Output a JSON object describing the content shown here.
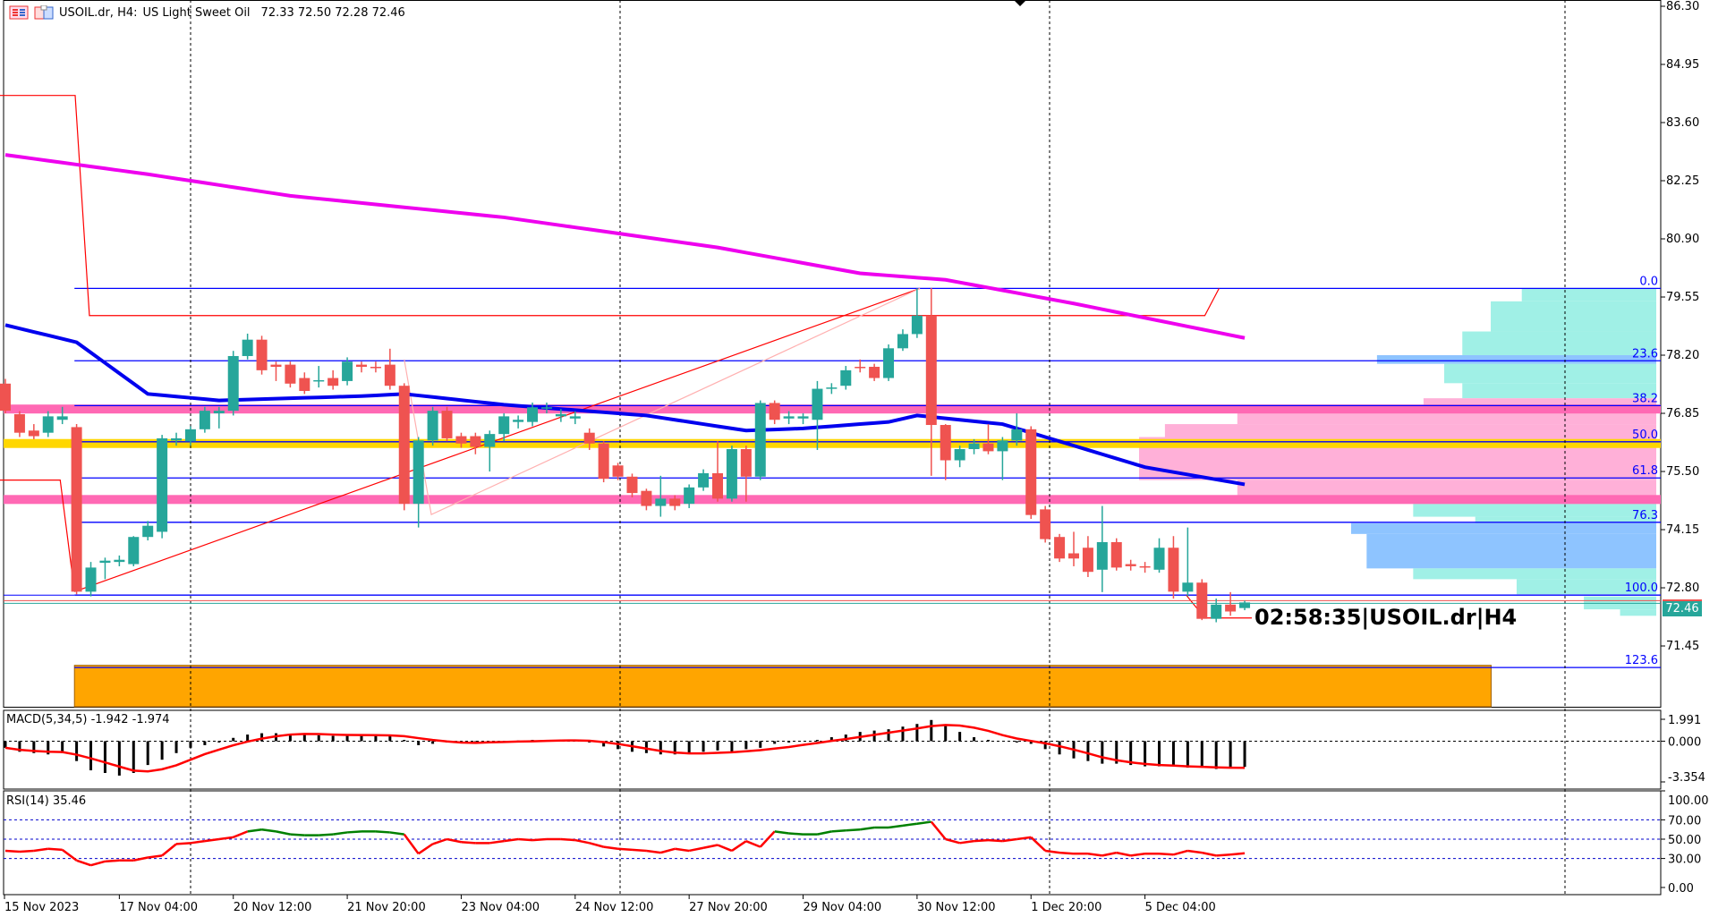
{
  "header": {
    "symbol": "USOIL.dr, H4:",
    "description": "US Light Sweet Oil",
    "ohlc": "72.33 72.50 72.28 72.46",
    "menu_icon": "list-icon",
    "chart_icon": "chart-window-icon"
  },
  "timer_label": "02:58:35|USOIL.dr|H4",
  "current_price": "72.46",
  "colors": {
    "bull": "#26a69a",
    "bear": "#ef5350",
    "ma_slow": "#ee00ee",
    "ma_fast": "#0000ee",
    "fib": "#0000ff",
    "zone_orange": "#ffa500",
    "band_pink": "#ff69b4",
    "band_yellow": "#ffd700",
    "vp_cyan": "#a0f0e6",
    "vp_pink": "#ffb0d8",
    "vp_blue": "#8ec4ff",
    "rsi_up": "#008000",
    "rsi_down": "#ff0000",
    "macd_signal": "#ff0000"
  },
  "price_axis": {
    "ticks": [
      "86.30",
      "84.95",
      "83.60",
      "82.25",
      "80.90",
      "79.55",
      "78.20",
      "76.85",
      "75.50",
      "74.15",
      "72.80",
      "71.45"
    ],
    "range": [
      70.05,
      86.3
    ]
  },
  "time_axis": {
    "labels": [
      "15 Nov 2023",
      "17 Nov 04:00",
      "20 Nov 12:00",
      "21 Nov 20:00",
      "23 Nov 04:00",
      "24 Nov 12:00",
      "27 Nov 20:00",
      "29 Nov 04:00",
      "30 Nov 12:00",
      "1 Dec 20:00",
      "5 Dec 04:00"
    ],
    "bars_per_label": 8
  },
  "chart_data": {
    "type": "candlestick",
    "candles": [
      [
        77.54,
        77.65,
        76.85,
        76.91
      ],
      [
        76.83,
        76.9,
        76.3,
        76.4
      ],
      [
        76.45,
        76.6,
        76.25,
        76.32
      ],
      [
        76.4,
        76.9,
        76.3,
        76.78
      ],
      [
        76.7,
        77.0,
        76.6,
        76.78
      ],
      [
        76.53,
        76.6,
        72.65,
        72.71
      ],
      [
        72.71,
        73.4,
        72.6,
        73.27
      ],
      [
        73.38,
        73.5,
        73.0,
        73.43
      ],
      [
        73.4,
        73.55,
        73.3,
        73.45
      ],
      [
        73.35,
        74.0,
        73.3,
        73.98
      ],
      [
        73.98,
        74.35,
        73.9,
        74.24
      ],
      [
        74.1,
        76.35,
        73.95,
        76.27
      ],
      [
        76.22,
        76.4,
        76.1,
        76.27
      ],
      [
        76.2,
        76.55,
        76.1,
        76.48
      ],
      [
        76.48,
        77.0,
        76.4,
        76.91
      ],
      [
        76.85,
        77.0,
        76.5,
        76.91
      ],
      [
        76.91,
        78.3,
        76.8,
        78.18
      ],
      [
        78.18,
        78.7,
        78.1,
        78.56
      ],
      [
        78.56,
        78.65,
        77.75,
        77.85
      ],
      [
        77.98,
        78.05,
        77.6,
        77.93
      ],
      [
        77.98,
        78.05,
        77.45,
        77.54
      ],
      [
        77.67,
        77.8,
        77.3,
        77.37
      ],
      [
        77.6,
        77.95,
        77.45,
        77.62
      ],
      [
        77.67,
        77.85,
        77.4,
        77.49
      ],
      [
        77.6,
        78.15,
        77.5,
        78.05
      ],
      [
        77.98,
        78.05,
        77.8,
        77.93
      ],
      [
        77.93,
        78.05,
        77.8,
        77.9
      ],
      [
        77.98,
        78.35,
        77.4,
        77.49
      ],
      [
        77.49,
        77.55,
        74.6,
        74.75
      ],
      [
        74.75,
        76.3,
        74.2,
        76.22
      ],
      [
        76.22,
        77.0,
        76.1,
        76.91
      ],
      [
        76.91,
        77.0,
        76.2,
        76.27
      ],
      [
        76.32,
        76.4,
        76.05,
        76.15
      ],
      [
        76.32,
        76.4,
        75.9,
        76.07
      ],
      [
        76.07,
        76.45,
        75.5,
        76.37
      ],
      [
        76.37,
        76.85,
        76.2,
        76.78
      ],
      [
        76.65,
        76.8,
        76.5,
        76.7
      ],
      [
        76.65,
        77.1,
        76.55,
        76.99
      ],
      [
        76.96,
        77.1,
        76.85,
        76.99
      ],
      [
        76.78,
        76.95,
        76.65,
        76.83
      ],
      [
        76.73,
        76.9,
        76.6,
        76.78
      ],
      [
        76.4,
        76.5,
        76.0,
        76.15
      ],
      [
        76.15,
        76.2,
        75.25,
        75.33
      ],
      [
        75.64,
        75.7,
        75.3,
        75.38
      ],
      [
        75.38,
        75.45,
        74.9,
        75.0
      ],
      [
        75.05,
        75.1,
        74.6,
        74.7
      ],
      [
        74.7,
        75.4,
        74.45,
        74.87
      ],
      [
        74.87,
        74.95,
        74.6,
        74.7
      ],
      [
        74.75,
        75.2,
        74.65,
        75.13
      ],
      [
        75.13,
        75.55,
        75.05,
        75.46
      ],
      [
        75.46,
        76.2,
        74.8,
        74.87
      ],
      [
        74.87,
        76.1,
        74.8,
        76.02
      ],
      [
        76.02,
        76.1,
        74.8,
        75.38
      ],
      [
        75.38,
        77.15,
        75.3,
        77.09
      ],
      [
        77.09,
        77.15,
        76.6,
        76.7
      ],
      [
        76.73,
        76.9,
        76.6,
        76.78
      ],
      [
        76.73,
        76.85,
        76.6,
        76.78
      ],
      [
        76.7,
        77.6,
        76.0,
        77.42
      ],
      [
        77.42,
        77.55,
        77.3,
        77.45
      ],
      [
        77.49,
        77.95,
        77.4,
        77.85
      ],
      [
        77.93,
        78.1,
        77.8,
        77.9
      ],
      [
        77.93,
        78.0,
        77.6,
        77.67
      ],
      [
        77.67,
        78.45,
        77.6,
        78.36
      ],
      [
        78.36,
        78.8,
        78.3,
        78.69
      ],
      [
        78.69,
        79.75,
        78.6,
        79.12
      ],
      [
        79.12,
        79.76,
        75.4,
        76.58
      ],
      [
        76.58,
        76.6,
        75.3,
        75.76
      ],
      [
        75.76,
        76.1,
        75.6,
        76.02
      ],
      [
        76.02,
        76.25,
        75.9,
        76.15
      ],
      [
        76.15,
        76.6,
        75.9,
        75.97
      ],
      [
        75.97,
        76.3,
        75.3,
        76.22
      ],
      [
        76.22,
        76.85,
        76.1,
        76.48
      ],
      [
        76.48,
        76.55,
        74.4,
        74.49
      ],
      [
        74.62,
        74.7,
        73.85,
        73.93
      ],
      [
        73.98,
        74.05,
        73.4,
        73.48
      ],
      [
        73.6,
        74.1,
        73.3,
        73.48
      ],
      [
        73.73,
        74.0,
        73.05,
        73.17
      ],
      [
        73.22,
        74.7,
        72.7,
        73.86
      ],
      [
        73.86,
        73.95,
        73.2,
        73.27
      ],
      [
        73.35,
        73.45,
        73.2,
        73.3
      ],
      [
        73.3,
        73.4,
        73.15,
        73.27
      ],
      [
        73.22,
        73.95,
        73.15,
        73.73
      ],
      [
        73.73,
        74.0,
        72.55,
        72.71
      ],
      [
        72.71,
        74.2,
        72.6,
        72.92
      ],
      [
        72.92,
        73.0,
        72.05,
        72.08
      ],
      [
        72.08,
        72.55,
        72.0,
        72.41
      ],
      [
        72.41,
        72.7,
        72.15,
        72.25
      ],
      [
        72.33,
        72.5,
        72.28,
        72.46
      ]
    ],
    "ma_slow": [
      [
        0,
        82.85
      ],
      [
        10,
        82.4
      ],
      [
        20,
        81.9
      ],
      [
        35,
        81.4
      ],
      [
        50,
        80.7
      ],
      [
        60,
        80.1
      ],
      [
        66,
        79.95
      ],
      [
        75,
        79.4
      ],
      [
        87,
        78.6
      ]
    ],
    "ma_fast": [
      [
        0,
        78.9
      ],
      [
        5,
        78.5
      ],
      [
        10,
        77.3
      ],
      [
        15,
        77.15
      ],
      [
        25,
        77.25
      ],
      [
        28,
        77.3
      ],
      [
        35,
        77.05
      ],
      [
        45,
        76.8
      ],
      [
        52,
        76.45
      ],
      [
        56,
        76.5
      ],
      [
        62,
        76.65
      ],
      [
        64,
        76.8
      ],
      [
        70,
        76.6
      ],
      [
        73,
        76.3
      ],
      [
        80,
        75.6
      ],
      [
        87,
        75.2
      ]
    ],
    "fibonacci": {
      "levels": [
        {
          "label": "0.0",
          "price": 79.75
        },
        {
          "label": "23.6",
          "price": 78.07
        },
        {
          "label": "38.2",
          "price": 77.03
        },
        {
          "label": "50.0",
          "price": 76.19
        },
        {
          "label": "61.8",
          "price": 75.35
        },
        {
          "label": "76.3",
          "price": 74.32
        },
        {
          "label": "100.0",
          "price": 72.63
        },
        {
          "label": "123.6",
          "price": 70.95
        }
      ],
      "start_bar": 4.85
    },
    "bands": [
      {
        "price": 76.95,
        "color": "#ff69b4"
      },
      {
        "price": 76.15,
        "color": "#ffd700"
      },
      {
        "price": 74.85,
        "color": "#ff69b4"
      }
    ],
    "zone": {
      "from_bar": 4.85,
      "to_bar": 104.3,
      "top": 71.0,
      "bottom": 70.05
    },
    "trendlines": [
      {
        "points": [
          [
            -0.5,
            84.23
          ],
          [
            4.9,
            84.23
          ],
          [
            5.9,
            79.12
          ],
          [
            84.2,
            79.12
          ],
          [
            85.2,
            79.75
          ]
        ],
        "color": "#ff0000"
      },
      {
        "points": [
          [
            -0.5,
            75.3
          ],
          [
            3.85,
            75.3
          ],
          [
            4.85,
            72.71
          ]
        ],
        "color": "#ff0000"
      },
      {
        "points": [
          [
            4.85,
            72.71
          ],
          [
            64.2,
            79.75
          ]
        ],
        "color": "#ff0000"
      },
      {
        "points": [
          [
            28,
            78.1
          ],
          [
            29.9,
            74.5
          ],
          [
            64.2,
            79.75
          ]
        ],
        "color": "#ffb0b0"
      },
      {
        "points": [
          [
            82.9,
            72.63
          ],
          [
            84.2,
            72.1
          ],
          [
            87.5,
            72.1
          ]
        ],
        "color": "#ff0000"
      }
    ],
    "volume_profile": [
      [
        79.75,
        79.45,
        0.26,
        "cyan"
      ],
      [
        79.45,
        78.75,
        0.32,
        "cyan"
      ],
      [
        78.75,
        78.2,
        0.375,
        "cyan"
      ],
      [
        78.2,
        78.0,
        0.54,
        "blue"
      ],
      [
        78.0,
        77.55,
        0.41,
        "cyan"
      ],
      [
        77.55,
        77.2,
        0.375,
        "cyan"
      ],
      [
        77.2,
        76.9,
        0.45,
        "pink"
      ],
      [
        76.9,
        76.6,
        0.81,
        "pink"
      ],
      [
        76.6,
        76.3,
        0.95,
        "pink"
      ],
      [
        76.3,
        75.3,
        1.0,
        "pink"
      ],
      [
        75.3,
        74.95,
        0.81,
        "pink"
      ],
      [
        74.75,
        74.45,
        0.47,
        "cyan"
      ],
      [
        74.45,
        74.3,
        0.35,
        "cyan"
      ],
      [
        74.3,
        74.05,
        0.59,
        "blue"
      ],
      [
        74.05,
        73.25,
        0.56,
        "blue"
      ],
      [
        73.25,
        73.0,
        0.47,
        "cyan"
      ],
      [
        73.0,
        72.65,
        0.27,
        "cyan"
      ],
      [
        72.6,
        72.3,
        0.14,
        "cyan"
      ],
      [
        72.3,
        72.15,
        0.07,
        "cyan"
      ]
    ]
  },
  "macd": {
    "label": "MACD(5,34,5) -1.942 -1.974",
    "axis": [
      "1.991",
      "0.000",
      "-3.354"
    ],
    "range": [
      -3.354,
      1.991
    ],
    "signal_period": 5,
    "values": [
      -0.5,
      -0.8,
      -0.9,
      -1.0,
      -0.9,
      -1.5,
      -2.2,
      -2.4,
      -2.6,
      -2.4,
      -1.8,
      -1.4,
      -0.9,
      -0.5,
      -0.3,
      -0.1,
      0.25,
      0.5,
      0.6,
      0.6,
      0.55,
      0.5,
      0.45,
      0.4,
      0.45,
      0.5,
      0.45,
      0.4,
      0.1,
      -0.3,
      -0.2,
      -0.1,
      0.0,
      -0.05,
      -0.1,
      -0.05,
      0.05,
      0.1,
      0.1,
      0.05,
      0.0,
      -0.1,
      -0.4,
      -0.6,
      -0.8,
      -0.9,
      -1.0,
      -1.0,
      -0.9,
      -0.8,
      -0.7,
      -0.8,
      -0.6,
      -0.5,
      -0.2,
      -0.1,
      0.0,
      0.1,
      0.3,
      0.5,
      0.7,
      0.8,
      0.9,
      1.1,
      1.3,
      1.6,
      1.2,
      0.7,
      0.3,
      0.1,
      0.0,
      -0.1,
      -0.2,
      -0.6,
      -1.0,
      -1.3,
      -1.5,
      -1.7,
      -1.7,
      -1.8,
      -1.9,
      -1.9,
      -1.9,
      -2.0,
      -2.0,
      -2.1,
      -2.0,
      -1.942
    ]
  },
  "rsi": {
    "label": "RSI(14) 35.46",
    "axis": [
      "100.00",
      "70.00",
      "50.00",
      "30.00",
      "0.00"
    ],
    "levels": [
      70,
      50,
      30
    ],
    "values": [
      38,
      37,
      38,
      40,
      39,
      28,
      23,
      27,
      28,
      28,
      31,
      33,
      45,
      46,
      48,
      50,
      52,
      58,
      60,
      58,
      55,
      54,
      54,
      55,
      57,
      58,
      58,
      57,
      55,
      35,
      45,
      50,
      47,
      46,
      46,
      48,
      50,
      49,
      50,
      50,
      49,
      46,
      42,
      40,
      39,
      38,
      36,
      40,
      38,
      41,
      44,
      38,
      48,
      42,
      58,
      56,
      55,
      55,
      58,
      59,
      60,
      62,
      62,
      64,
      66,
      68,
      50,
      46,
      48,
      49,
      48,
      50,
      52,
      38,
      36,
      35,
      35,
      33,
      36,
      33,
      35,
      35,
      34,
      38,
      36,
      33,
      34,
      35.46
    ]
  }
}
